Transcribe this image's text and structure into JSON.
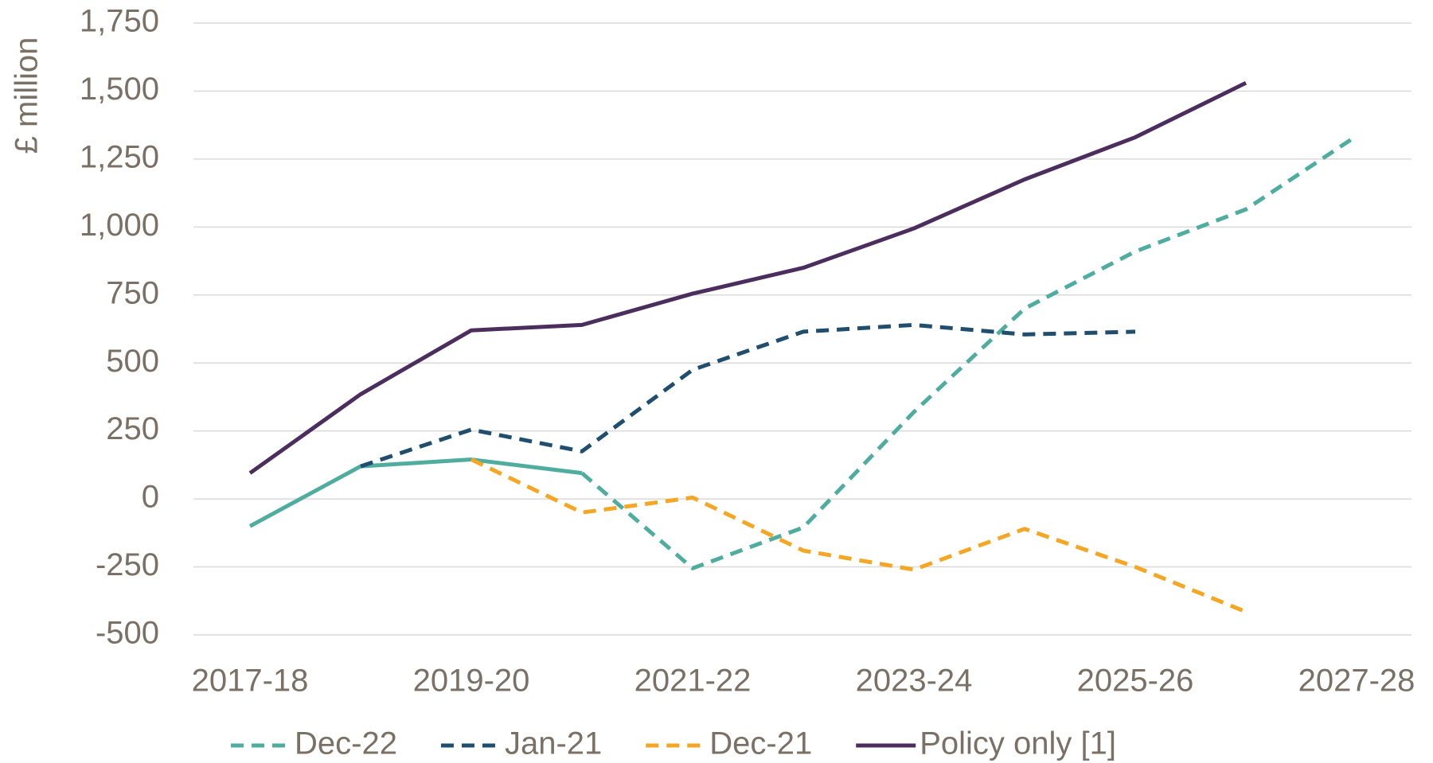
{
  "chart_data": {
    "type": "line",
    "y_axis_label": "£ million",
    "categories": [
      "2017-18",
      null,
      "2019-20",
      null,
      "2021-22",
      null,
      "2023-24",
      null,
      "2025-26",
      null,
      "2027-28"
    ],
    "series": [
      {
        "name": "Dec-22",
        "color": "#4fada0",
        "dashed": true,
        "solid_until": 3,
        "values": [
          -100,
          120,
          145,
          95,
          -255,
          -105,
          320,
          700,
          910,
          1065,
          1335
        ]
      },
      {
        "name": "Jan-21",
        "color": "#1f4e6e",
        "dashed": true,
        "values": [
          null,
          120,
          255,
          175,
          475,
          615,
          640,
          605,
          615,
          null,
          null
        ]
      },
      {
        "name": "Dec-21",
        "color": "#f5a623",
        "dashed": true,
        "values": [
          null,
          null,
          145,
          -50,
          5,
          -190,
          -260,
          -110,
          -250,
          -415,
          null
        ]
      },
      {
        "name": "Policy only [1]",
        "color": "#4b2e5e",
        "dashed": false,
        "values": [
          95,
          385,
          620,
          640,
          755,
          850,
          995,
          1175,
          1330,
          1530,
          null
        ]
      }
    ],
    "ylim": [
      -500,
      1750
    ],
    "yticks": [
      -500,
      -250,
      0,
      250,
      500,
      750,
      {
        "value": 1000,
        "label": "1,000"
      },
      {
        "value": 1250,
        "label": "1,250"
      },
      {
        "value": 1500,
        "label": "1,500"
      },
      {
        "value": 1750,
        "label": "1,750"
      }
    ],
    "grid": true,
    "legend": "bottom"
  }
}
